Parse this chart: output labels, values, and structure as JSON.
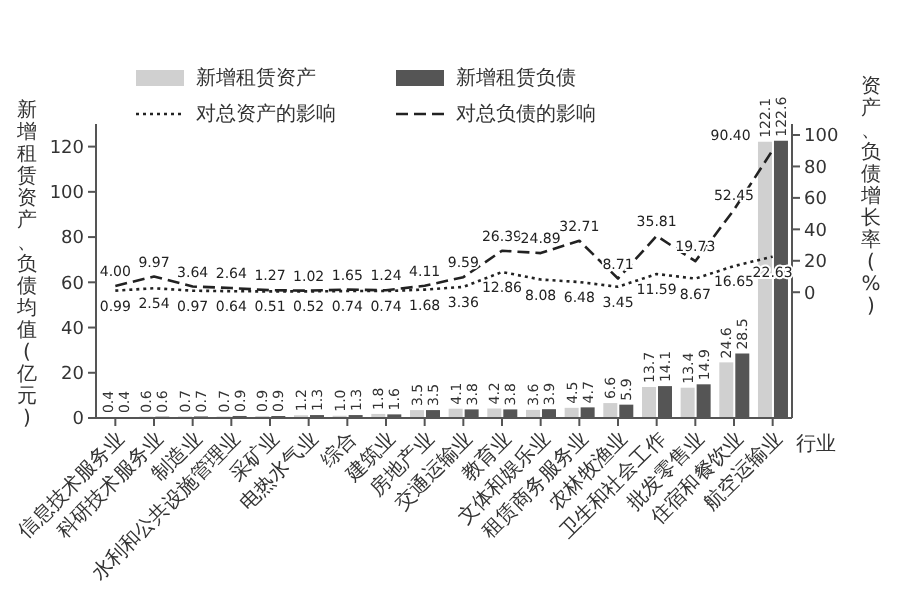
{
  "chart_data": {
    "type": "bar",
    "xlabel": "行业",
    "ylabel": "新增租赁资产、负债均值(亿元)",
    "y2label": "资产、负债增长率(%)",
    "categories": [
      "信息技术服务业",
      "科研技术服务业",
      "制造业",
      "水利和公共设施管理业",
      "采矿业",
      "电热水气业",
      "综合",
      "建筑业",
      "房地产业",
      "交通运输业",
      "教育业",
      "文体和娱乐业",
      "租赁商务服务业",
      "农林牧渔业",
      "卫生和社会工作",
      "批发零售业",
      "住宿和餐饮业",
      "航空运输业"
    ],
    "series": [
      {
        "name": "新增租赁资产",
        "color": "#d0d0d0",
        "values": [
          0.4,
          0.6,
          0.7,
          0.7,
          0.9,
          1.2,
          1.0,
          1.8,
          3.5,
          4.1,
          4.2,
          3.6,
          4.5,
          6.6,
          13.7,
          13.4,
          24.6,
          122.1
        ],
        "value_labels": [
          "0.4",
          "0.6",
          "0.7",
          "0.7",
          "0.9",
          "1.2",
          "1.0",
          "1.8",
          "3.5",
          "4.1",
          "4.2",
          "3.6",
          "4.5",
          "6.6",
          "13.7",
          "13.4",
          "24.6",
          "122.1"
        ]
      },
      {
        "name": "新增租赁负债",
        "color": "#555555",
        "values": [
          0.4,
          0.6,
          0.7,
          0.9,
          0.9,
          1.3,
          1.3,
          1.6,
          3.5,
          3.8,
          3.8,
          3.9,
          4.7,
          5.9,
          14.1,
          14.9,
          28.5,
          122.6
        ],
        "value_labels": [
          "0.4",
          "0.6",
          "0.7",
          "0.9",
          "0.9",
          "1.3",
          "1.3",
          "1.6",
          "3.5",
          "3.8",
          "3.8",
          "3.9",
          "4.7",
          "5.9",
          "14.1",
          "14.9",
          "28.5",
          "122.6"
        ]
      },
      {
        "name": "对总资产的影响",
        "type": "line",
        "axis": "y2",
        "line_style": "dotted",
        "color": "#222222",
        "values": [
          0.99,
          2.54,
          0.97,
          0.64,
          0.51,
          0.52,
          0.74,
          0.74,
          1.68,
          3.36,
          12.86,
          8.08,
          6.48,
          3.45,
          11.59,
          8.67,
          16.65,
          22.63
        ],
        "value_labels": [
          "0.99",
          "2.54",
          "0.97",
          "0.64",
          "0.51",
          "0.52",
          "0.74",
          "0.74",
          "1.68",
          "3.36",
          "12.86",
          "8.08",
          "6.48",
          "3.45",
          "11.59",
          "8.67",
          "16.65",
          "22.63"
        ]
      },
      {
        "name": "对总负债的影响",
        "type": "line",
        "axis": "y2",
        "line_style": "dashed",
        "color": "#222222",
        "values": [
          4.0,
          9.97,
          3.64,
          2.64,
          1.27,
          1.02,
          1.65,
          1.24,
          4.11,
          9.59,
          26.39,
          24.89,
          32.71,
          8.71,
          35.81,
          19.73,
          52.45,
          90.4
        ],
        "value_labels": [
          "4.00",
          "9.97",
          "3.64",
          "2.64",
          "1.27",
          "1.02",
          "1.65",
          "1.24",
          "4.11",
          "9.59",
          "26.39",
          "24.89",
          "32.71",
          "8.71",
          "35.81",
          "19.73",
          "52.45",
          "90.40"
        ]
      }
    ],
    "ylim": [
      0,
      130
    ],
    "yticks": [
      0,
      20,
      40,
      60,
      80,
      100,
      120
    ],
    "y2lim": [
      -80,
      107
    ],
    "y2ticks": [
      0,
      20,
      40,
      60,
      80,
      100
    ],
    "marker": "none",
    "grid": false,
    "legend": "top left"
  }
}
